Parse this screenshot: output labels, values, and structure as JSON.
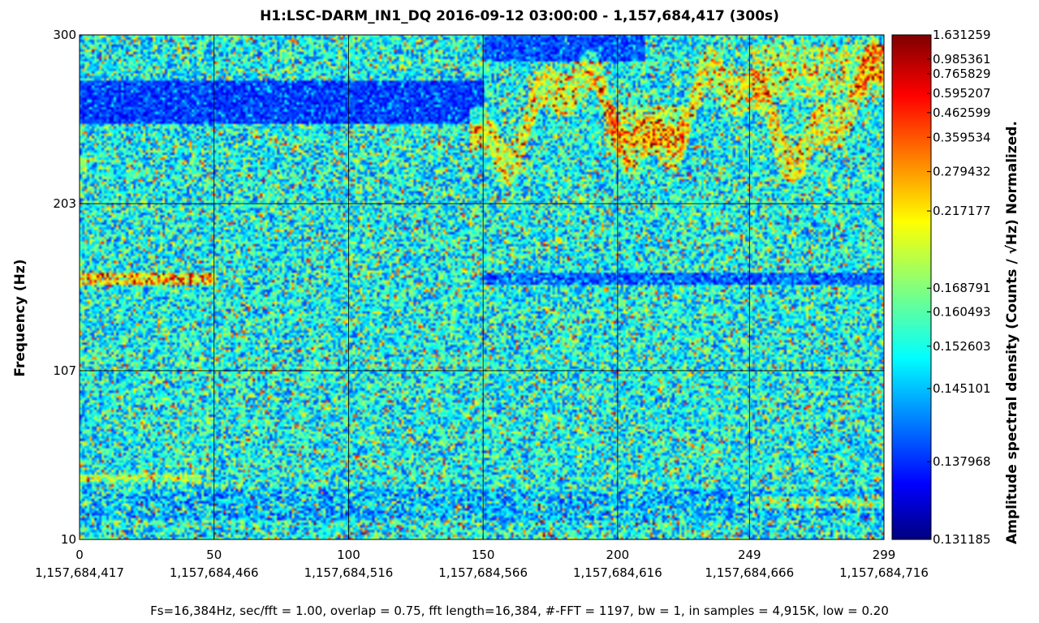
{
  "chart_data": {
    "type": "heatmap",
    "title": "H1:LSC-DARM_IN1_DQ 2016-09-12 03:00:00 - 1,157,684,417 (300s)",
    "ylabel": "Frequency (Hz)",
    "colorbar_label": "Amplitude spectral density (Counts / √Hz) Normalized.",
    "xlim": [
      0,
      299
    ],
    "ylim": [
      10,
      300
    ],
    "x_ticks": [
      {
        "value": 0,
        "label": "0",
        "gps": "1,157,684,417"
      },
      {
        "value": 50,
        "label": "50",
        "gps": "1,157,684,466"
      },
      {
        "value": 100,
        "label": "100",
        "gps": "1,157,684,516"
      },
      {
        "value": 150,
        "label": "150",
        "gps": "1,157,684,566"
      },
      {
        "value": 200,
        "label": "200",
        "gps": "1,157,684,616"
      },
      {
        "value": 249,
        "label": "249",
        "gps": "1,157,684,666"
      },
      {
        "value": 299,
        "label": "299",
        "gps": "1,157,684,716"
      }
    ],
    "y_ticks": [
      {
        "value": 10,
        "label": "10"
      },
      {
        "value": 107,
        "label": "107"
      },
      {
        "value": 203,
        "label": "203"
      },
      {
        "value": 300,
        "label": "300"
      }
    ],
    "colorbar_ticks": [
      {
        "value": 1.631259,
        "label": "1.631259",
        "level": 1.0
      },
      {
        "value": 0.985361,
        "label": "0.985361",
        "level": 0.952
      },
      {
        "value": 0.765829,
        "label": "0.765829",
        "level": 0.923
      },
      {
        "value": 0.595207,
        "label": "0.595207",
        "level": 0.884
      },
      {
        "value": 0.462599,
        "label": "0.462599",
        "level": 0.846
      },
      {
        "value": 0.359534,
        "label": "0.359534",
        "level": 0.797
      },
      {
        "value": 0.279432,
        "label": "0.279432",
        "level": 0.729
      },
      {
        "value": 0.217177,
        "label": "0.217177",
        "level": 0.651
      },
      {
        "value": 0.168791,
        "label": "0.168791",
        "level": 0.498
      },
      {
        "value": 0.160493,
        "label": "0.160493",
        "level": 0.451
      },
      {
        "value": 0.152603,
        "label": "0.152603",
        "level": 0.383
      },
      {
        "value": 0.145101,
        "label": "0.145101",
        "level": 0.299
      },
      {
        "value": 0.137968,
        "label": "0.137968",
        "level": 0.154
      },
      {
        "value": 0.131185,
        "label": "0.131185",
        "level": 0.0
      }
    ],
    "colormap": "jet",
    "colormap_stops": [
      "#00007f",
      "#0000ff",
      "#00ffff",
      "#ffff00",
      "#ff0000",
      "#7f0000"
    ],
    "grid": true
  },
  "footer": "Fs=16,384Hz, sec/fft = 1.00, overlap = 0.75, fft length=16,384, #-FFT = 1197, bw = 1, in samples = 4,915K, low = 0.20"
}
